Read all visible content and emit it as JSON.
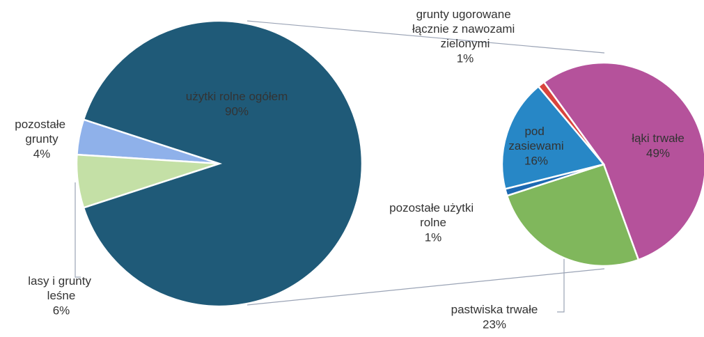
{
  "chart_data": [
    {
      "type": "pie",
      "categories": [
        "pozostałe grunty",
        "lasy i grunty leśne",
        "użytki rolne ogółem"
      ],
      "values": [
        4,
        6,
        90
      ],
      "value_labels": [
        "4%",
        "6%",
        "90%"
      ],
      "colors": [
        "#8fb1ea",
        "#c4e0a6",
        "#1f5a78"
      ]
    },
    {
      "type": "pie",
      "categories": [
        "łąki trwałe",
        "pastwiska trwałe",
        "pozostałe użytki rolne",
        "pod zasiewami",
        "grunty ugorowane łącznie z nawozami zielonymi"
      ],
      "values": [
        49,
        23,
        1,
        16,
        1
      ],
      "value_labels": [
        "49%",
        "23%",
        "1%",
        "16%",
        "1%"
      ],
      "colors": [
        "#b5529b",
        "#80b75c",
        "#1d69b2",
        "#2787c6",
        "#d9443d"
      ]
    }
  ]
}
